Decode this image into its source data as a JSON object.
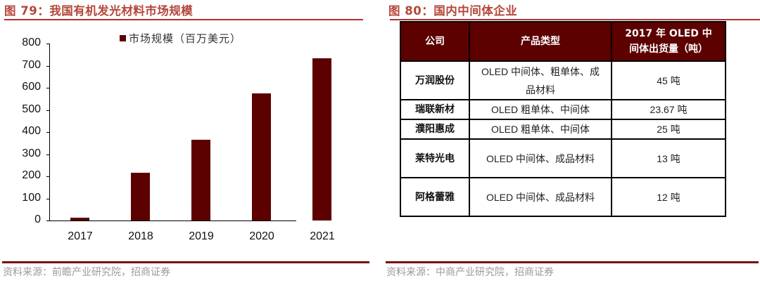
{
  "left_panel": {
    "title": "图 79：我国有机发光材料市场规模",
    "source": "资料来源：前瞻产业研究院，招商证券"
  },
  "right_panel": {
    "title": "图 80：国内中间体企业",
    "source": "资料来源：中商产业研究院，招商证券",
    "table": {
      "headers": [
        "公司",
        "产品类型",
        "2017 年 OLED 中间体出货量（吨）"
      ],
      "rows": [
        {
          "company": "万润股份",
          "product": "OLED 中间体、粗单体、成品材料",
          "volume": "45 吨"
        },
        {
          "company": "瑞联新材",
          "product": "OLED 粗单体、中间体",
          "volume": "23.67 吨"
        },
        {
          "company": "濮阳惠成",
          "product": "OLED 粗单体、中间体",
          "volume": "25 吨"
        },
        {
          "company": "莱特光电",
          "product": "OLED 中间体、成品材料",
          "volume": "13 吨"
        },
        {
          "company": "阿格蕾雅",
          "product": "OLED 中间体、成品材料",
          "volume": "12 吨"
        }
      ]
    }
  },
  "colors": {
    "bar": "#5c0000",
    "title": "#b5463a",
    "rule": "#7a0c0c",
    "header_bg": "#5c0000"
  },
  "chart_data": {
    "type": "bar",
    "title": "我国有机发光材料市场规模",
    "categories": [
      "2017",
      "2018",
      "2019",
      "2020",
      "2021"
    ],
    "series": [
      {
        "name": "市场规模（百万美元）",
        "values": [
          12,
          215,
          364,
          576,
          734
        ]
      }
    ],
    "legend": [
      "市场规模（百万美元）"
    ],
    "legend_position": "top",
    "xlabel": "",
    "ylabel": "",
    "ylim": [
      0,
      800
    ],
    "yticks": [
      "0",
      "100",
      "200",
      "300",
      "400",
      "500",
      "600",
      "700",
      "800"
    ],
    "grid": false
  }
}
